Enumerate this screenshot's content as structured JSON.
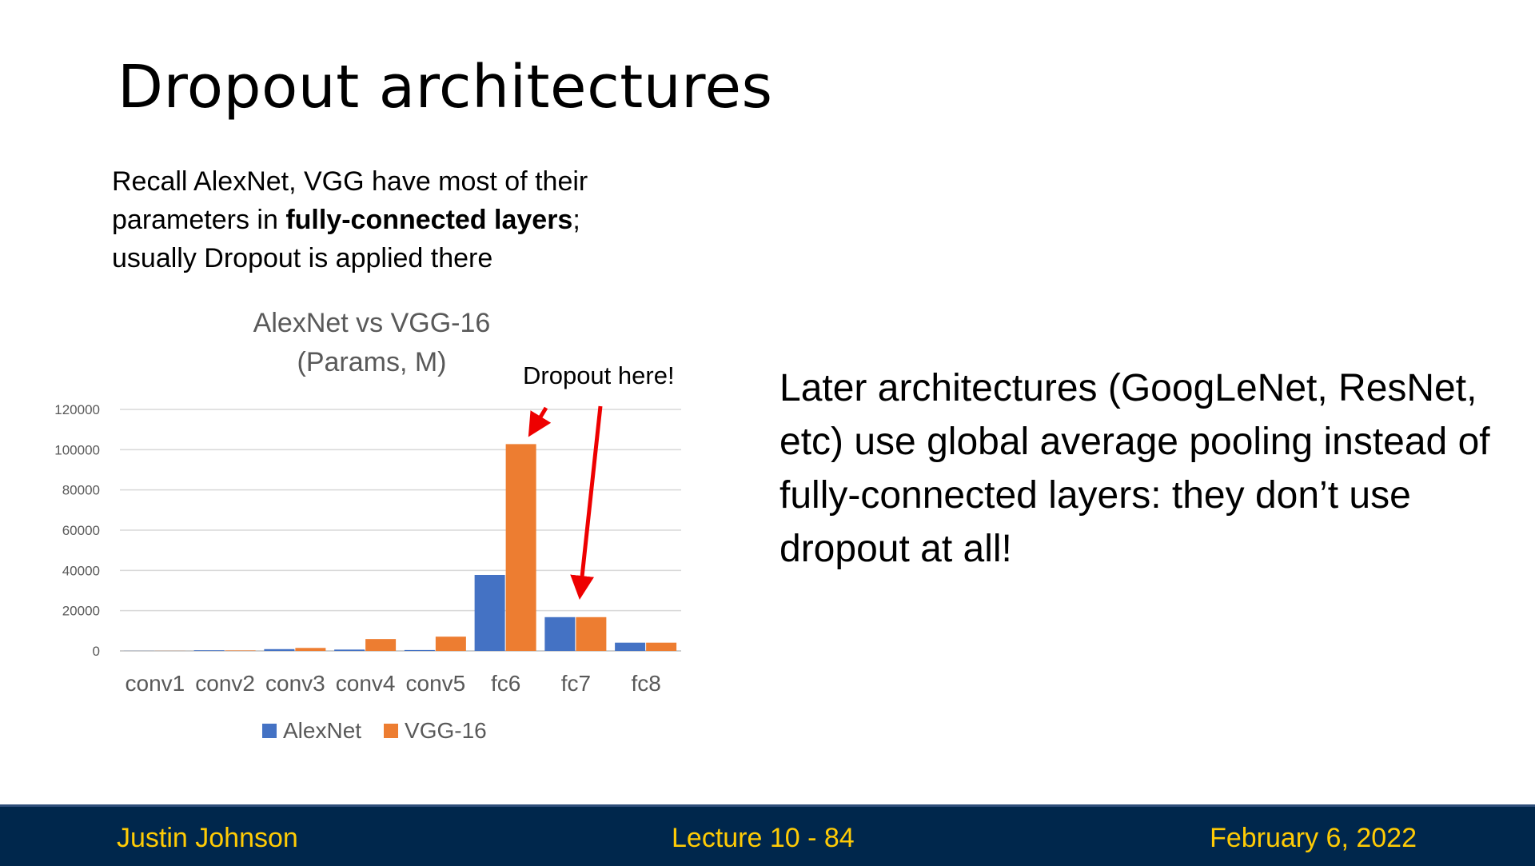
{
  "slide": {
    "title": "Dropout architectures",
    "intro_part1": "Recall AlexNet, VGG have most of their parameters in ",
    "intro_bold": "fully-connected layers",
    "intro_part2": "; usually Dropout is applied there",
    "right_text": "Later architectures (GoogLeNet, ResNet, etc) use global average pooling instead of fully-connected layers: they don’t use dropout at all!",
    "annotation": "Dropout here!"
  },
  "footer": {
    "left": "Justin Johnson",
    "center": "Lecture 10 - 84",
    "right": "February 6, 2022"
  },
  "chart_data": {
    "type": "bar",
    "title": "AlexNet vs VGG-16 (Params, M)",
    "title_line1": "AlexNet vs VGG-16",
    "title_line2": "(Params, M)",
    "categories": [
      "conv1",
      "conv2",
      "conv3",
      "conv4",
      "conv5",
      "fc6",
      "fc7",
      "fc8"
    ],
    "series": [
      {
        "name": "AlexNet",
        "color": "#4472c4",
        "values": [
          35,
          307,
          884,
          663,
          442,
          37749,
          16777,
          4097
        ]
      },
      {
        "name": "VGG-16",
        "color": "#ed7d31",
        "values": [
          39,
          221,
          1475,
          5900,
          7080,
          102760,
          16777,
          4097
        ]
      }
    ],
    "ylim": [
      0,
      120000
    ],
    "yticks": [
      0,
      20000,
      40000,
      60000,
      80000,
      100000,
      120000
    ],
    "grid": true,
    "legend": "bottom"
  }
}
